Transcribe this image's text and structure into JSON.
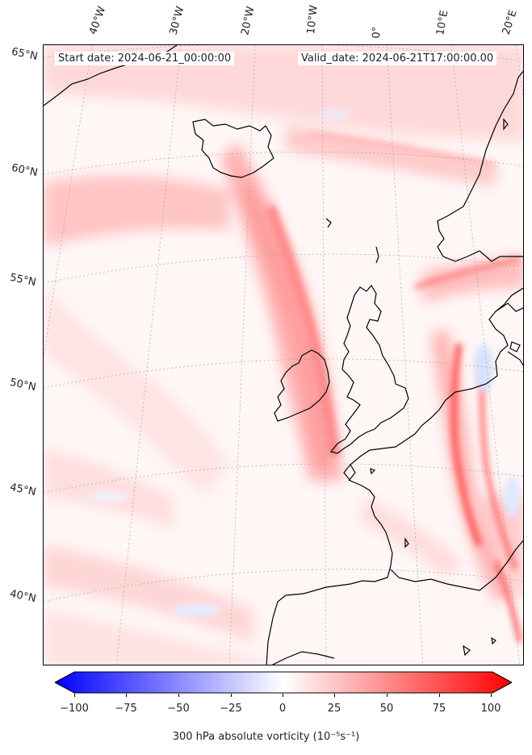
{
  "header": {
    "start_date": "Start date: 2024-06-21_00:00:00",
    "valid_date": "Valid_date: 2024-06-21T17:00:00.00"
  },
  "graticule": {
    "longitude_labels": [
      "40°W",
      "30°W",
      "20°W",
      "10°W",
      "0°",
      "10°E",
      "20°E"
    ],
    "latitude_labels": [
      "65°N",
      "60°N",
      "55°N",
      "50°N",
      "45°N",
      "40°N"
    ]
  },
  "colorbar": {
    "ticks": [
      "−100",
      "−75",
      "−50",
      "−25",
      "0",
      "25",
      "50",
      "75",
      "100"
    ],
    "label": "300 hPa absolute vorticity (10⁻⁵s⁻¹)",
    "min": -100,
    "max": 100,
    "colormap": "bwr",
    "neg_color": "#0000ff",
    "mid_color": "#ffffff",
    "pos_color": "#ff0000"
  }
}
